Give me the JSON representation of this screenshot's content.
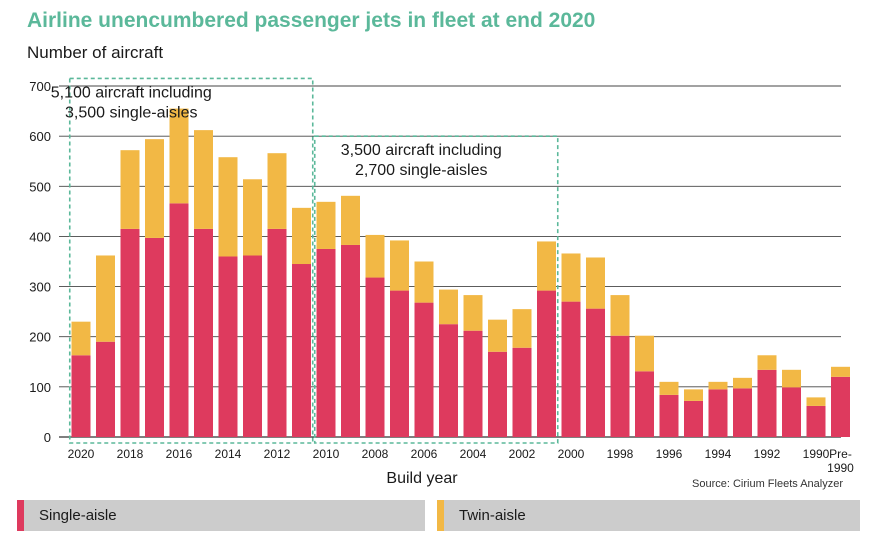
{
  "title": "Airline unencumbered passenger jets in fleet at end 2020",
  "source": "Source: Cirium Fleets Analyzer",
  "colors": {
    "single": "#de3a5e",
    "twin": "#f2b845",
    "box": "#5bb89a",
    "title": "#5bb89a"
  },
  "legend": [
    {
      "label": "Single-aisle",
      "color": "#de3a5e"
    },
    {
      "label": "Twin-aisle",
      "color": "#f2b845"
    }
  ],
  "chart_data": {
    "type": "bar",
    "stacked": true,
    "ylabel": "Number of aircraft",
    "xlabel": "Build year",
    "ylim": [
      0,
      700
    ],
    "yticks": [
      0,
      100,
      200,
      300,
      400,
      500,
      600,
      700
    ],
    "grid": true,
    "categories": [
      "2020",
      "2019",
      "2018",
      "2017",
      "2016",
      "2015",
      "2014",
      "2013",
      "2012",
      "2011",
      "2010",
      "2009",
      "2008",
      "2007",
      "2006",
      "2005",
      "2004",
      "2003",
      "2002",
      "2001",
      "2000",
      "1999",
      "1998",
      "1997",
      "1996",
      "1995",
      "1994",
      "1993",
      "1992",
      "1991",
      "1990",
      "Pre-1990"
    ],
    "tick_labels": [
      {
        "index": 0,
        "label": "2020"
      },
      {
        "index": 2,
        "label": "2018"
      },
      {
        "index": 4,
        "label": "2016"
      },
      {
        "index": 6,
        "label": "2014"
      },
      {
        "index": 8,
        "label": "2012"
      },
      {
        "index": 10,
        "label": "2010"
      },
      {
        "index": 12,
        "label": "2008"
      },
      {
        "index": 14,
        "label": "2006"
      },
      {
        "index": 16,
        "label": "2004"
      },
      {
        "index": 18,
        "label": "2002"
      },
      {
        "index": 20,
        "label": "2000"
      },
      {
        "index": 22,
        "label": "1998"
      },
      {
        "index": 24,
        "label": "1996"
      },
      {
        "index": 26,
        "label": "1994"
      },
      {
        "index": 28,
        "label": "1992"
      },
      {
        "index": 30,
        "label": "1990"
      },
      {
        "index": 31,
        "label": "Pre-\n1990"
      }
    ],
    "series": [
      {
        "name": "Single-aisle",
        "values": [
          163,
          190,
          415,
          397,
          466,
          415,
          360,
          362,
          415,
          345,
          375,
          383,
          318,
          292,
          268,
          225,
          212,
          170,
          178,
          292,
          270,
          256,
          202,
          131,
          84,
          72,
          95,
          97,
          134,
          99,
          62,
          120
        ]
      },
      {
        "name": "Twin-aisle",
        "values": [
          67,
          172,
          157,
          197,
          189,
          197,
          198,
          152,
          151,
          112,
          94,
          98,
          85,
          100,
          82,
          69,
          71,
          64,
          77,
          98,
          96,
          102,
          81,
          71,
          26,
          23,
          15,
          21,
          29,
          35,
          17,
          20
        ]
      }
    ],
    "annotations": [
      {
        "lines": [
          "5,100 aircraft including",
          "3,500 single-aisles"
        ],
        "from_index": 0,
        "to_index": 9,
        "top_value": 715
      },
      {
        "lines": [
          "3,500 aircraft including",
          "2,700 single-aisles"
        ],
        "from_index": 10,
        "to_index": 19,
        "top_value": 600
      }
    ]
  }
}
